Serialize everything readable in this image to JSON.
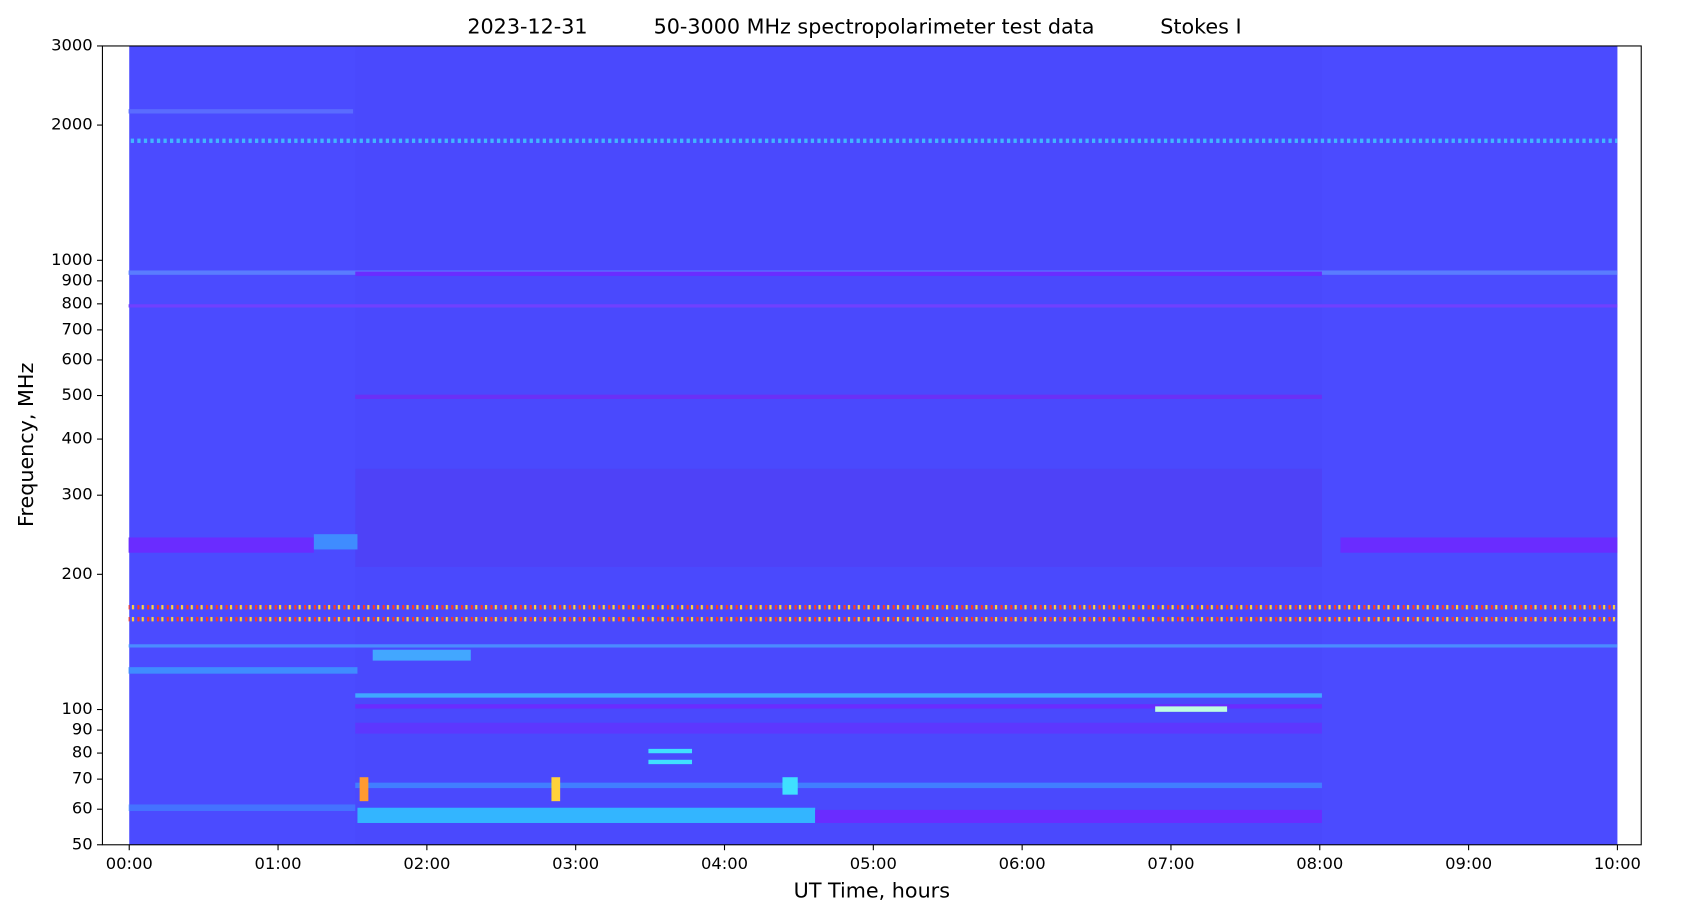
{
  "chart_data": {
    "type": "spectrogram",
    "date": "2023-12-31",
    "title": "50-3000 MHz spectropolarimeter test data",
    "stokes": "Stokes I",
    "x_label": "UT Time, hours",
    "y_label": "Frequency, MHz",
    "xlim": [
      -0.18,
      10.16
    ],
    "xticks": [
      {
        "value": 0,
        "label": "00:00"
      },
      {
        "value": 1,
        "label": "01:00"
      },
      {
        "value": 2,
        "label": "02:00"
      },
      {
        "value": 3,
        "label": "03:00"
      },
      {
        "value": 4,
        "label": "04:00"
      },
      {
        "value": 5,
        "label": "05:00"
      },
      {
        "value": 6,
        "label": "06:00"
      },
      {
        "value": 7,
        "label": "07:00"
      },
      {
        "value": 8,
        "label": "08:00"
      },
      {
        "value": 9,
        "label": "09:00"
      },
      {
        "value": 10,
        "label": "10:00"
      }
    ],
    "ylim": [
      50,
      3000
    ],
    "y_scale": "log",
    "yticks": [
      50,
      60,
      70,
      80,
      90,
      100,
      200,
      300,
      400,
      500,
      600,
      700,
      800,
      900,
      1000,
      2000,
      3000
    ],
    "color": "#4b4bff"
  }
}
